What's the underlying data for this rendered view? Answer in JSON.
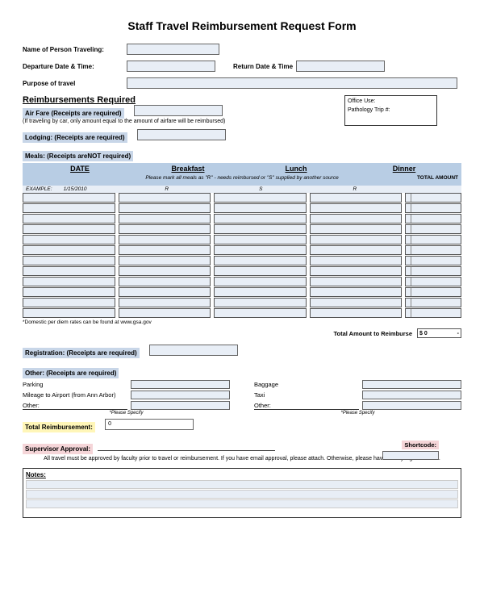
{
  "title": "Staff Travel Reimbursement Request Form",
  "fields": {
    "name_label": "Name of Person Traveling:",
    "departure_label": "Departure Date & Time:",
    "return_label": "Return Date & Time",
    "purpose_label": "Purpose of travel"
  },
  "reimbursements": {
    "heading": "Reimbursements Required",
    "airfare_label": "Air Fare (Receipts are required)",
    "airfare_note": "(If traveling by car, only amount equal to the amount of airfare will be reimbursed)",
    "lodging_label": "Lodging: (Receipts are required)",
    "meals_label": "Meals: (Receipts areNOT required)"
  },
  "office": {
    "heading": "Office Use:",
    "pathology_label": "Pathology Trip #:"
  },
  "meals_table": {
    "columns": {
      "date": "DATE",
      "breakfast": "Breakfast",
      "lunch": "Lunch",
      "dinner": "Dinner",
      "total": "TOTAL AMOUNT"
    },
    "note": "Please mark all meals as \"R\" - needs reimbursed or \"S\" supplied by another source",
    "example_label": "EXAMPLE:",
    "example_date": "1/15/2010",
    "example_bf": "R",
    "example_lunch": "S",
    "example_dinner": "R",
    "row_count": 12,
    "colors": {
      "header_bg": "#b8cde4",
      "cell_bg": "#e8eef6"
    }
  },
  "footnote": "*Domestic per diem rates can be found at www.gsa.gov",
  "total_reimburse": {
    "label": "Total Amount to Reimburse",
    "value": "$ 0",
    "suffix": "-"
  },
  "registration": {
    "label": "Registration: (Receipts are required)"
  },
  "other": {
    "label": "Other: (Receipts are required)",
    "left": {
      "parking": "Parking",
      "mileage": "Mileage to Airport (from Ann Arbor)",
      "other": "Other:",
      "specify": "*Please Specify"
    },
    "right": {
      "baggage": "Baggage",
      "taxi": "Taxi",
      "other": "Other:",
      "specify": "*Please Specify"
    }
  },
  "total_reimbursement": {
    "label": "Total Reimbursement:",
    "value": "0"
  },
  "approval": {
    "label": "Supervisor Approval:",
    "shortcode_label": "Shortcode:",
    "text": "All travel must be approved by faculty prior to travel or reimbursement.  If you have email approval, please attach.  Otherwise, please have faculty sign this form."
  },
  "notes": {
    "label": "Notes:",
    "line_count": 3
  },
  "colors": {
    "section_blue": "#c8d6e8",
    "section_pink": "#f5d5d8",
    "section_yellow": "#fff6b8",
    "field_bg": "#e8eef6"
  }
}
